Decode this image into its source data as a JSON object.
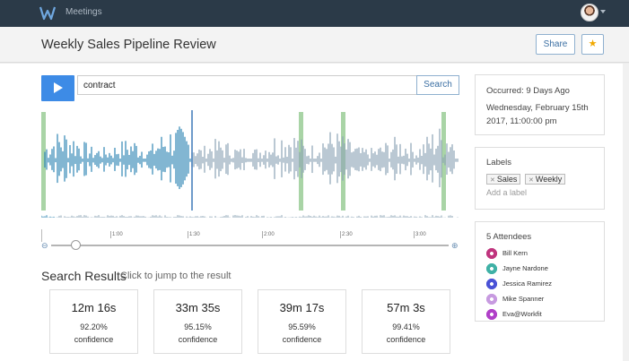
{
  "topbar": {
    "app_title": "Meetings"
  },
  "header": {
    "title": "Weekly Sales Pipeline Review",
    "share_label": "Share",
    "star_glyph": "★"
  },
  "player": {
    "search_value": "contract",
    "search_button_label": "Search"
  },
  "timeline": {
    "ticks": [
      "1:00",
      "1:30",
      "2:00",
      "2:30",
      "3:00"
    ]
  },
  "results": {
    "title": "Search Results",
    "subtitle": "Click to jump to the result",
    "items": [
      {
        "time": "12m 16s",
        "percent": "92.20%",
        "label": "confidence"
      },
      {
        "time": "33m 35s",
        "percent": "95.15%",
        "label": "confidence"
      },
      {
        "time": "39m 17s",
        "percent": "95.59%",
        "label": "confidence"
      },
      {
        "time": "57m 3s",
        "percent": "99.41%",
        "label": "confidence"
      }
    ]
  },
  "meeting": {
    "occurred": "Occurred: 9 Days Ago",
    "date": "Wednesday, February 15th 2017, 11:00:00 pm"
  },
  "labels": {
    "title": "Labels",
    "tags": [
      "Sales",
      "Weekly"
    ],
    "add_placeholder": "Add a label"
  },
  "attendees": {
    "title": "5 Attendees",
    "people": [
      {
        "name": "Bill Kern",
        "color": "#c0357e"
      },
      {
        "name": "Jayne Nardone",
        "color": "#3fb1a6"
      },
      {
        "name": "Jessica Ramirez",
        "color": "#4a52d6"
      },
      {
        "name": "Mike Spanner",
        "color": "#c79ae0"
      },
      {
        "name": "Eva@Workfit",
        "color": "#b040c8"
      }
    ]
  },
  "colors": {
    "topbar": "#2b3a48",
    "play_button": "#3d8be6",
    "wave_played": "#2f86b3",
    "wave_unplayed": "#8da4b6",
    "match_marker": "#a9d4a6"
  },
  "icons": {
    "logo": "workfit-w-logo-icon",
    "play": "play-icon",
    "star": "star-icon",
    "zoom_out": "zoom-out-icon",
    "zoom_in": "zoom-in-icon",
    "attendee": "avatar-identicon-icon"
  }
}
